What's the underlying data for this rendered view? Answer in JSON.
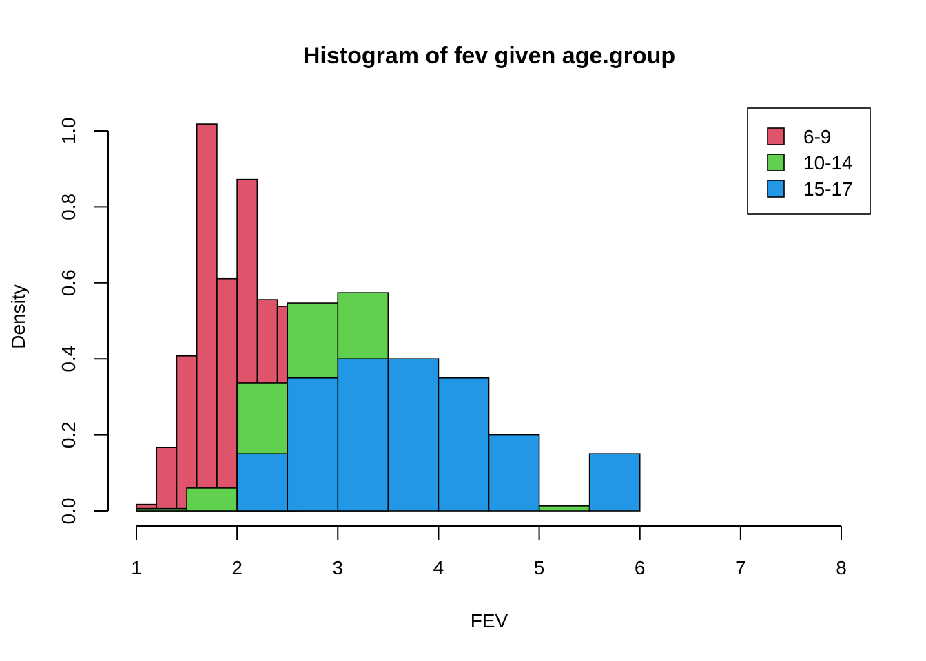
{
  "chart_data": {
    "type": "bar",
    "title": "Histogram of fev given age.group",
    "xlabel": "FEV",
    "ylabel": "Density",
    "xlim": [
      1,
      8
    ],
    "ylim": [
      0,
      1.0
    ],
    "x_ticks": [
      "1",
      "2",
      "3",
      "4",
      "5",
      "6",
      "7",
      "8"
    ],
    "y_ticks": [
      "0.0",
      "0.2",
      "0.4",
      "0.6",
      "0.8",
      "1.0"
    ],
    "legend_position": "top-right",
    "series": [
      {
        "name": "6-9",
        "color": "#DF536B",
        "bins": [
          {
            "x0": 1.0,
            "x1": 1.2,
            "density": 0.017
          },
          {
            "x0": 1.2,
            "x1": 1.4,
            "density": 0.167
          },
          {
            "x0": 1.4,
            "x1": 1.6,
            "density": 0.408
          },
          {
            "x0": 1.6,
            "x1": 1.8,
            "density": 1.018
          },
          {
            "x0": 1.8,
            "x1": 2.0,
            "density": 0.611
          },
          {
            "x0": 2.0,
            "x1": 2.2,
            "density": 0.872
          },
          {
            "x0": 2.2,
            "x1": 2.4,
            "density": 0.556
          },
          {
            "x0": 2.4,
            "x1": 2.6,
            "density": 0.538
          }
        ]
      },
      {
        "name": "10-14",
        "color": "#61D04F",
        "bins": [
          {
            "x0": 1.0,
            "x1": 1.5,
            "density": 0.006
          },
          {
            "x0": 1.5,
            "x1": 2.0,
            "density": 0.06
          },
          {
            "x0": 2.0,
            "x1": 2.5,
            "density": 0.337
          },
          {
            "x0": 2.5,
            "x1": 3.0,
            "density": 0.547
          },
          {
            "x0": 3.0,
            "x1": 3.5,
            "density": 0.574
          },
          {
            "x0": 5.0,
            "x1": 5.5,
            "density": 0.013
          }
        ]
      },
      {
        "name": "15-17",
        "color": "#2297E6",
        "bins": [
          {
            "x0": 2.0,
            "x1": 2.5,
            "density": 0.15
          },
          {
            "x0": 2.5,
            "x1": 3.0,
            "density": 0.35
          },
          {
            "x0": 3.0,
            "x1": 3.5,
            "density": 0.4
          },
          {
            "x0": 3.5,
            "x1": 4.0,
            "density": 0.4
          },
          {
            "x0": 4.0,
            "x1": 4.5,
            "density": 0.35
          },
          {
            "x0": 4.5,
            "x1": 5.0,
            "density": 0.2
          },
          {
            "x0": 5.5,
            "x1": 6.0,
            "density": 0.15
          }
        ]
      }
    ]
  }
}
